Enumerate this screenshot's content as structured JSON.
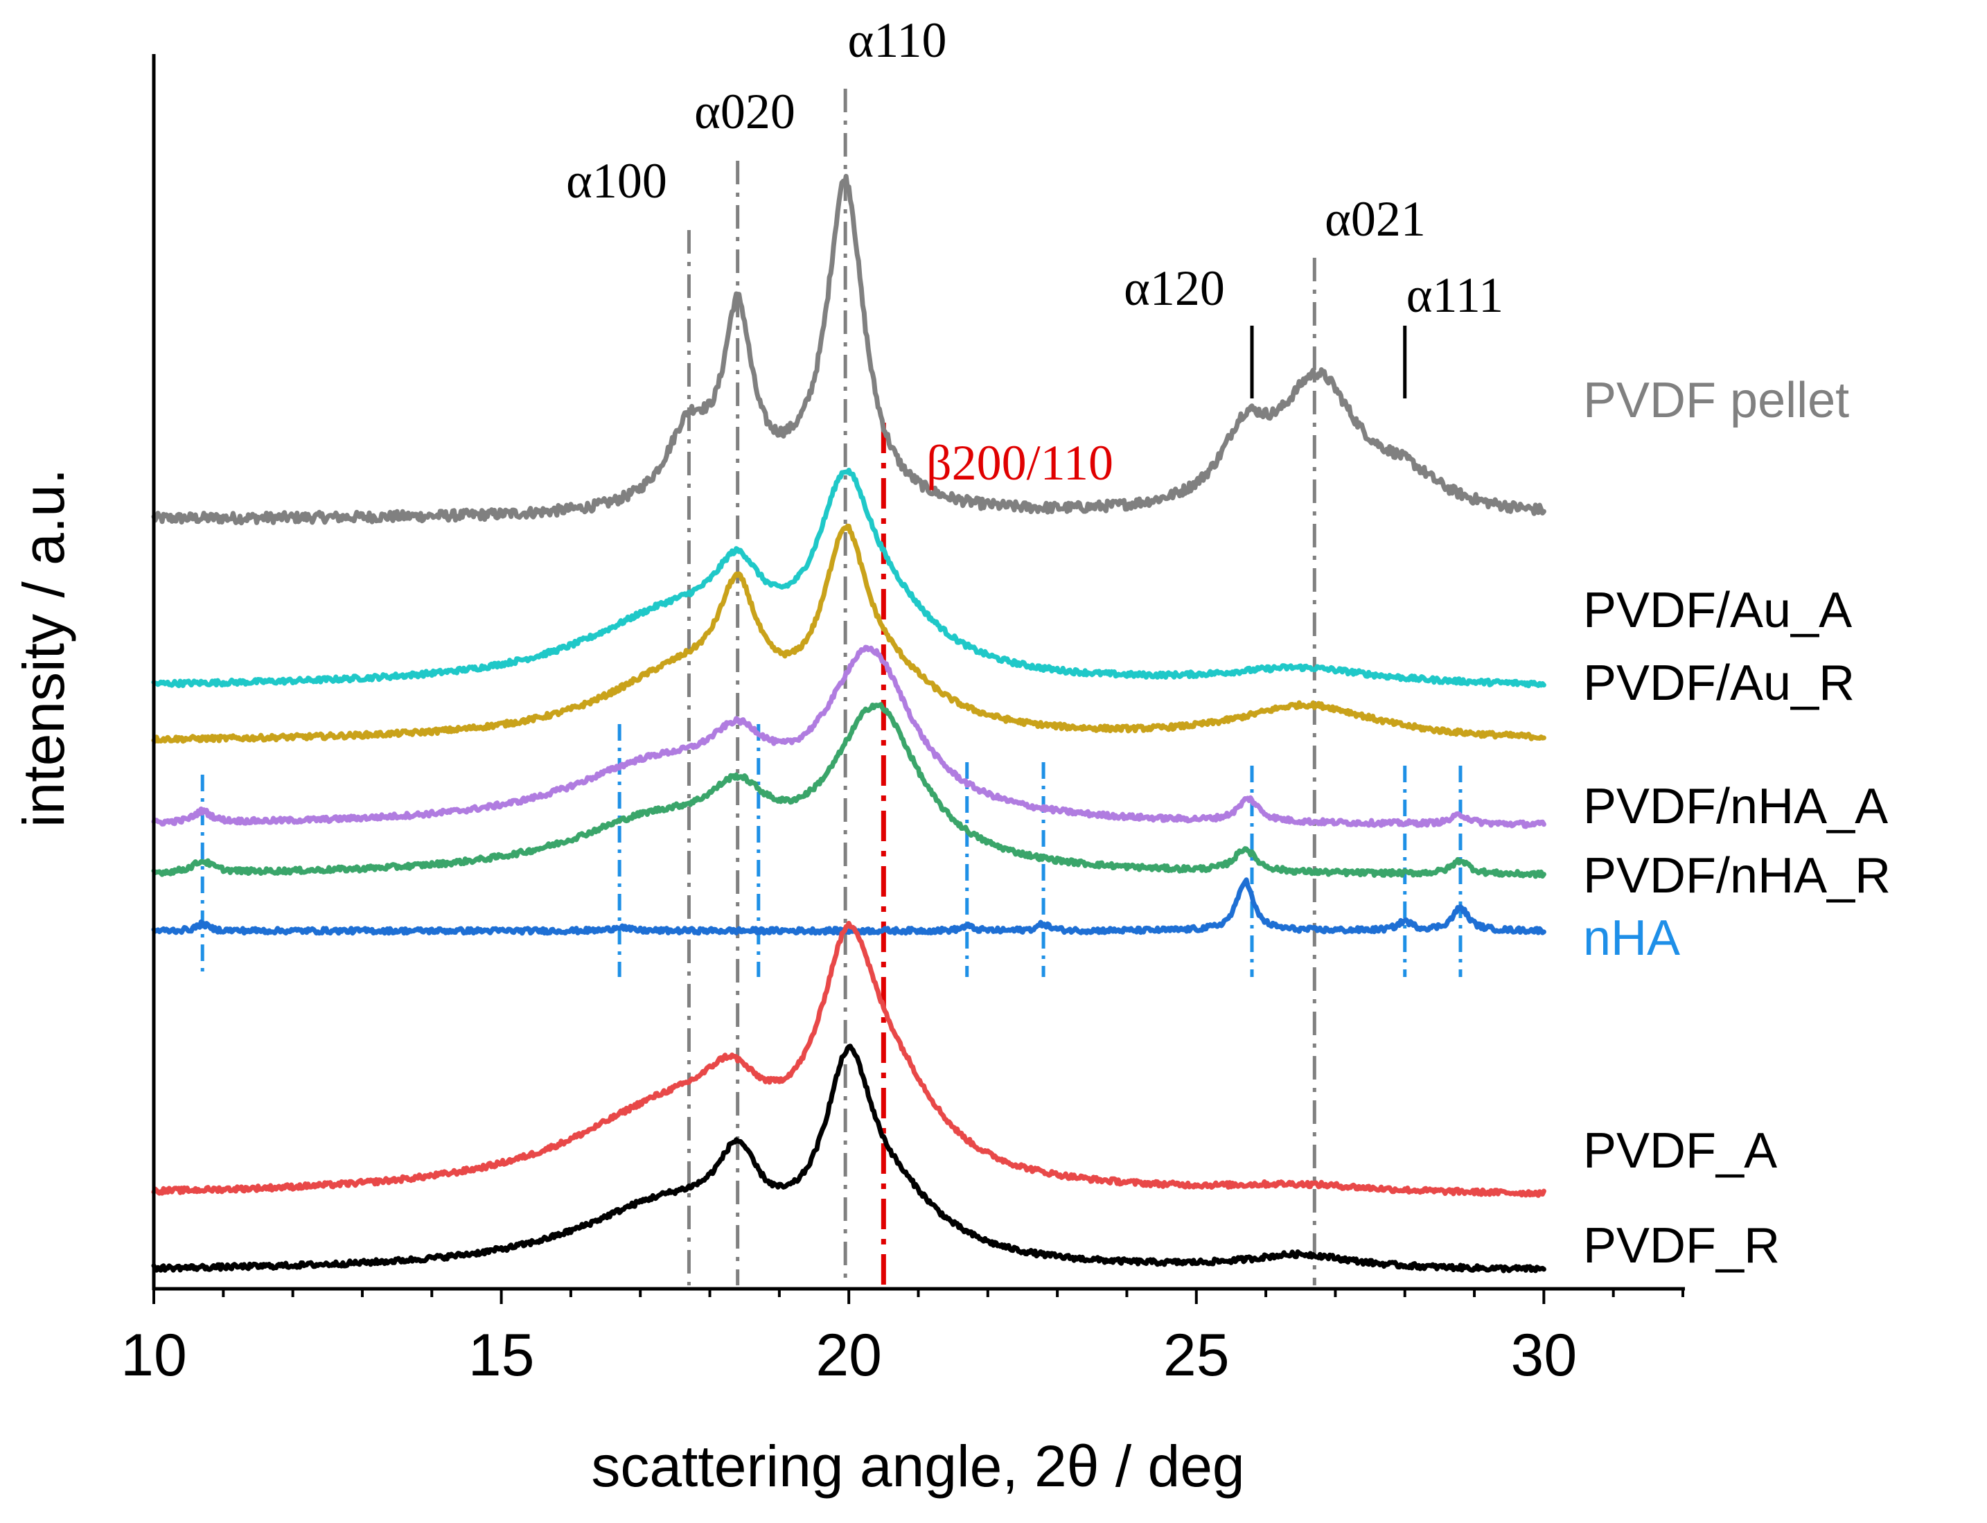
{
  "chart_data": {
    "type": "line",
    "title": "",
    "xlabel": "scattering angle, 2θ / deg",
    "ylabel": "intensity / a.u.",
    "xlim": [
      10,
      32
    ],
    "xticks": [
      10,
      15,
      20,
      25,
      30
    ],
    "xtick_labels": [
      "10",
      "15",
      "20",
      "25",
      "30"
    ],
    "y_units": "arbitrary (stacked, offset traces)",
    "series": [
      {
        "name": "PVDF pellet",
        "label": "PVDF pellet",
        "color": "#808080",
        "baseline": 3.37,
        "peaks": [
          [
            17.7,
            0.33,
            0.4
          ],
          [
            18.4,
            0.78,
            0.25
          ],
          [
            19.2,
            0.1,
            0.9
          ],
          [
            19.95,
            1.4,
            0.32
          ],
          [
            25.7,
            0.28,
            0.4
          ],
          [
            26.75,
            0.58,
            0.7
          ],
          [
            28.0,
            0.12,
            0.6
          ]
        ]
      },
      {
        "name": "PVDF/Au_A",
        "label": "PVDF/Au_A",
        "color": "#1FC8C8",
        "baseline": 2.63,
        "peaks": [
          [
            17.5,
            0.3,
            1.6
          ],
          [
            18.4,
            0.28,
            0.4
          ],
          [
            19.95,
            0.7,
            0.48
          ],
          [
            20.6,
            0.22,
            0.9
          ],
          [
            26.5,
            0.07,
            1.3
          ]
        ]
      },
      {
        "name": "PVDF/Au_R",
        "label": "PVDF/Au_R",
        "color": "#C9A21A",
        "baseline": 2.39,
        "peaks": [
          [
            17.6,
            0.28,
            1.4
          ],
          [
            18.4,
            0.45,
            0.33
          ],
          [
            19.95,
            0.72,
            0.38
          ],
          [
            20.6,
            0.2,
            0.9
          ],
          [
            26.6,
            0.15,
            1.2
          ]
        ]
      },
      {
        "name": "PVDF/nHA_A",
        "label": "PVDF/nHA_A",
        "color": "#B07CE0",
        "baseline": 2.02,
        "peaks": [
          [
            10.7,
            0.05,
            0.15
          ],
          [
            17.2,
            0.24,
            1.5
          ],
          [
            18.4,
            0.22,
            0.5
          ],
          [
            20.3,
            0.72,
            0.75
          ],
          [
            25.75,
            0.1,
            0.18
          ],
          [
            28.8,
            0.04,
            0.15
          ]
        ]
      },
      {
        "name": "PVDF/nHA_R",
        "label": "PVDF/nHA_R",
        "color": "#3AA56A",
        "baseline": 1.8,
        "peaks": [
          [
            10.7,
            0.05,
            0.18
          ],
          [
            17.2,
            0.22,
            1.5
          ],
          [
            18.4,
            0.22,
            0.5
          ],
          [
            20.4,
            0.7,
            0.75
          ],
          [
            25.7,
            0.1,
            0.18
          ],
          [
            28.8,
            0.06,
            0.15
          ]
        ]
      },
      {
        "name": "nHA",
        "label": "nHA",
        "color": "#1E6FD4",
        "baseline": 1.56,
        "peaks": [
          [
            10.7,
            0.03,
            0.1
          ],
          [
            16.7,
            0.02,
            0.1
          ],
          [
            21.7,
            0.02,
            0.1
          ],
          [
            22.8,
            0.03,
            0.1
          ],
          [
            25.7,
            0.22,
            0.14
          ],
          [
            28.0,
            0.04,
            0.12
          ],
          [
            28.8,
            0.1,
            0.14
          ]
        ]
      },
      {
        "name": "PVDF_A",
        "label": "PVDF_A",
        "color": "#E84848",
        "baseline": 0.39,
        "peaks": [
          [
            17.5,
            0.38,
            1.8
          ],
          [
            18.3,
            0.2,
            0.45
          ],
          [
            20.0,
            0.88,
            0.5
          ],
          [
            20.7,
            0.3,
            0.8
          ],
          [
            26.5,
            0.03,
            1.2
          ]
        ]
      },
      {
        "name": "PVDF_R",
        "label": "PVDF_R",
        "color": "#000000",
        "baseline": 0.06,
        "peaks": [
          [
            17.4,
            0.28,
            1.6
          ],
          [
            18.4,
            0.3,
            0.35
          ],
          [
            20.0,
            0.76,
            0.42
          ],
          [
            20.7,
            0.22,
            0.85
          ],
          [
            26.5,
            0.06,
            0.9
          ]
        ]
      }
    ],
    "reference_lines": [
      {
        "x": 17.7,
        "style": "dash-dot",
        "color": "#808080",
        "label": "α100"
      },
      {
        "x": 18.4,
        "style": "dash-dot",
        "color": "#808080",
        "label": "α020"
      },
      {
        "x": 19.95,
        "style": "dash-dot",
        "color": "#808080",
        "label": "α110"
      },
      {
        "x": 26.7,
        "style": "dash-dot",
        "color": "#808080",
        "label": "α021"
      },
      {
        "x": 20.5,
        "style": "dash-dot",
        "color": "#E00000",
        "label": "β200/110"
      },
      {
        "x": 25.8,
        "style": "tick",
        "color": "#000000",
        "label": "α120"
      },
      {
        "x": 28.0,
        "style": "tick",
        "color": "#000000",
        "label": "α111"
      }
    ],
    "nha_reference_lines": [
      10.7,
      16.7,
      18.7,
      21.7,
      22.8,
      25.8,
      28.0,
      28.8
    ],
    "nha_line_color": "#1E90E6"
  }
}
